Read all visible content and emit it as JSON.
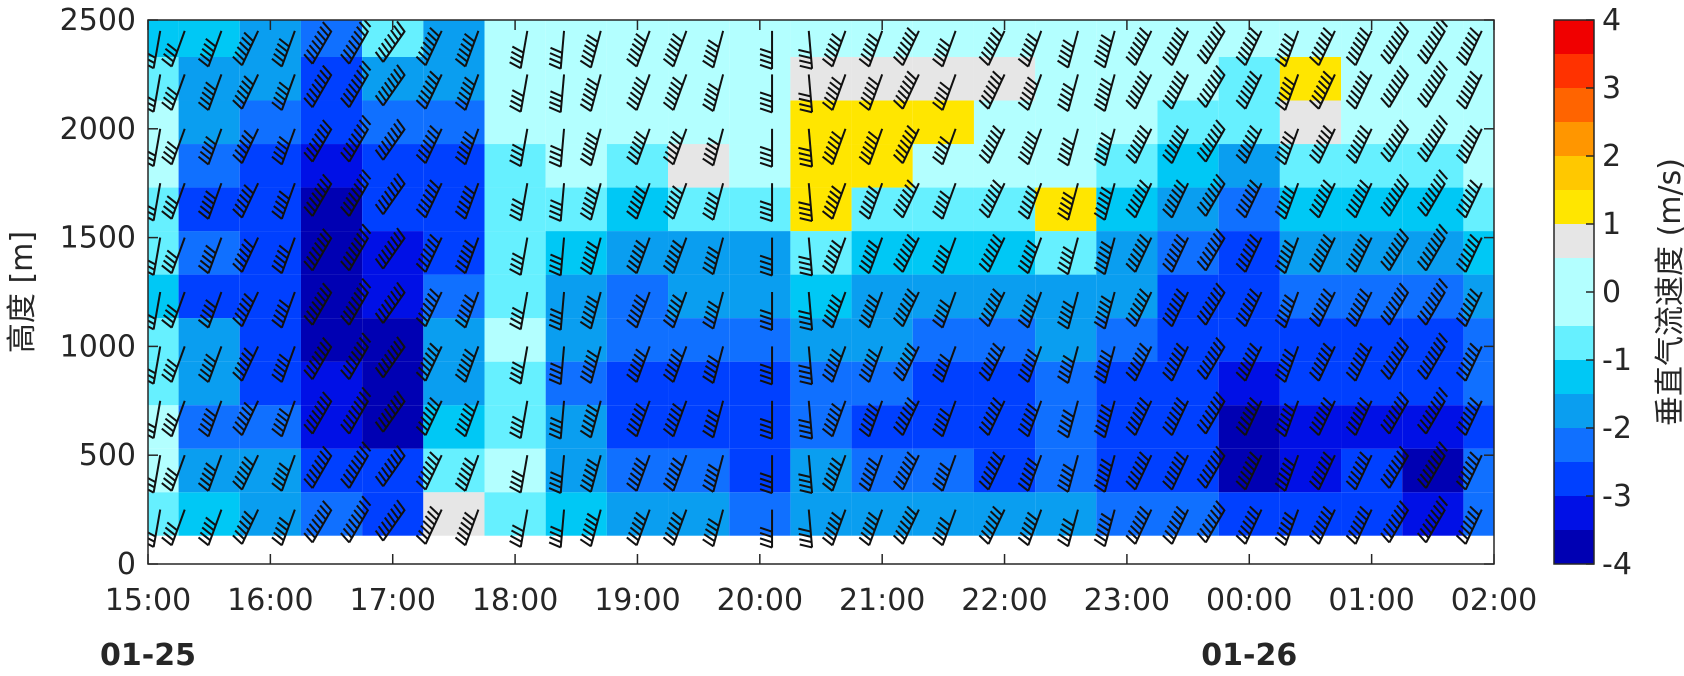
{
  "chart_data": {
    "type": "heatmap",
    "overlay": "wind-barbs",
    "x_tick_labels": [
      "15:00",
      "16:00",
      "17:00",
      "18:00",
      "19:00",
      "20:00",
      "21:00",
      "22:00",
      "23:00",
      "00:00",
      "01:00",
      "02:00"
    ],
    "x_hours": [
      15,
      16,
      17,
      18,
      19,
      20,
      21,
      22,
      23,
      24,
      25,
      26
    ],
    "date_labels": [
      {
        "text": "01-25",
        "hour": 15
      },
      {
        "text": "01-26",
        "hour": 24
      }
    ],
    "ylabel": "高度 [m]",
    "ylim": [
      0,
      2500
    ],
    "y_ticks": [
      0,
      500,
      1000,
      1500,
      2000,
      2500
    ],
    "y_tick_labels": [
      "0",
      "500",
      "1000",
      "1500",
      "2000",
      "2500"
    ],
    "data_bottom_height": 130,
    "colorbar": {
      "label": "垂直气流速度 (m/s)",
      "range": [
        -4,
        4
      ],
      "ticks": [
        4,
        3,
        2,
        1,
        0,
        -1,
        -2,
        -3,
        -4
      ],
      "tick_labels": [
        "4",
        "3",
        "2",
        "1",
        "0",
        "-1",
        "-2",
        "-3",
        "-4"
      ],
      "levels": [
        -4,
        -3.5,
        -3,
        -2.5,
        -2,
        -1.5,
        -1,
        -0.5,
        0.5,
        1,
        1.5,
        2,
        2.5,
        3,
        3.5,
        4
      ],
      "colors": [
        "#0000b3",
        "#0010e6",
        "#0040ff",
        "#1070ff",
        "#0a9ef0",
        "#00c8f5",
        "#66f0ff",
        "#b3ffff",
        "#e6e6e6",
        "#ffe600",
        "#ffc800",
        "#ff9600",
        "#ff6400",
        "#ff3200",
        "#f00000",
        "#c00000"
      ]
    },
    "series": [
      {
        "hour": 15.0,
        "values": [
          -0.8,
          -0.5,
          -0.3,
          -0.6,
          -1.0,
          -1.2,
          -1.0,
          -0.6,
          -0.5,
          -0.4,
          -0.6,
          -1.2
        ]
      },
      {
        "hour": 15.5,
        "values": [
          -1.5,
          -1.8,
          -2.2,
          -2.0,
          -1.8,
          -2.6,
          -2.2,
          -2.6,
          -2.4,
          -2.0,
          -1.8,
          -1.5
        ]
      },
      {
        "hour": 16.0,
        "values": [
          -1.8,
          -2.0,
          -2.2,
          -2.6,
          -2.8,
          -2.8,
          -3.0,
          -2.8,
          -2.6,
          -2.4,
          -2.0,
          -1.8
        ]
      },
      {
        "hour": 16.5,
        "values": [
          -2.4,
          -2.8,
          -3.2,
          -3.4,
          -3.6,
          -3.8,
          -3.8,
          -3.6,
          -3.4,
          -3.0,
          -2.6,
          -2.2
        ]
      },
      {
        "hour": 17.0,
        "values": [
          -2.6,
          -3.0,
          -3.6,
          -3.8,
          -3.6,
          -3.4,
          -3.2,
          -3.0,
          -2.8,
          -2.4,
          -1.6,
          -1.0
        ]
      },
      {
        "hour": 17.5,
        "values": [
          0.8,
          -0.6,
          -1.2,
          -1.6,
          -2.0,
          -2.4,
          -2.8,
          -2.8,
          -2.6,
          -2.4,
          -2.0,
          -1.6
        ]
      },
      {
        "hour": 18.0,
        "values": [
          -0.6,
          -0.5,
          -0.8,
          -0.6,
          -0.5,
          -0.8,
          -1.0,
          -0.8,
          -0.6,
          -0.4,
          -0.3,
          -0.3
        ]
      },
      {
        "hour": 18.5,
        "values": [
          -1.2,
          -1.6,
          -2.0,
          -2.2,
          -2.0,
          -1.8,
          -1.2,
          -0.8,
          -0.5,
          -0.3,
          -0.3,
          -0.3
        ]
      },
      {
        "hour": 19.0,
        "values": [
          -1.8,
          -2.2,
          -2.6,
          -2.6,
          -2.4,
          -2.2,
          -1.6,
          -1.2,
          -0.8,
          -0.4,
          -0.3,
          -0.2
        ]
      },
      {
        "hour": 19.5,
        "values": [
          -2.0,
          -2.4,
          -2.8,
          -2.8,
          -2.4,
          -2.0,
          -1.6,
          -1.0,
          0.8,
          -0.3,
          -0.2,
          -0.2
        ]
      },
      {
        "hour": 20.0,
        "values": [
          -2.2,
          -2.6,
          -2.8,
          -2.6,
          -2.4,
          -2.0,
          -1.6,
          -1.0,
          -0.5,
          -0.3,
          -0.2,
          -0.2
        ]
      },
      {
        "hour": 20.5,
        "values": [
          -1.6,
          -2.0,
          -2.4,
          -2.2,
          -1.8,
          -1.4,
          -1.0,
          1.0,
          1.2,
          1.0,
          0.8,
          -0.3
        ]
      },
      {
        "hour": 21.0,
        "values": [
          -2.0,
          -2.4,
          -2.6,
          -2.4,
          -2.0,
          -1.6,
          -1.2,
          -0.8,
          1.0,
          1.2,
          0.8,
          -0.3
        ]
      },
      {
        "hour": 21.5,
        "values": [
          -1.8,
          -2.2,
          -2.6,
          -2.6,
          -2.2,
          -1.8,
          -1.2,
          -0.8,
          -0.5,
          1.0,
          0.8,
          -0.3
        ]
      },
      {
        "hour": 22.0,
        "values": [
          -2.0,
          -2.6,
          -3.0,
          -2.8,
          -2.4,
          -2.0,
          -1.4,
          -0.8,
          -0.4,
          -0.3,
          0.8,
          -0.3
        ]
      },
      {
        "hour": 22.5,
        "values": [
          -1.8,
          -2.2,
          -2.4,
          -2.2,
          -2.0,
          -1.6,
          -1.0,
          1.0,
          -0.4,
          -0.3,
          -0.3,
          -0.2
        ]
      },
      {
        "hour": 23.0,
        "values": [
          -2.2,
          -2.6,
          -2.8,
          -2.6,
          -2.4,
          -2.0,
          -1.6,
          -1.2,
          -0.6,
          -0.4,
          -0.3,
          -0.2
        ]
      },
      {
        "hour": 23.5,
        "values": [
          -2.4,
          -2.8,
          -3.0,
          -3.0,
          -2.8,
          -2.6,
          -2.4,
          -1.8,
          -1.2,
          -0.6,
          -0.4,
          -0.3
        ]
      },
      {
        "hour": 24.0,
        "values": [
          -3.0,
          -3.6,
          -3.8,
          -3.4,
          -3.0,
          -2.8,
          -2.6,
          -2.2,
          -1.6,
          -1.0,
          -0.6,
          -0.4
        ]
      },
      {
        "hour": 24.5,
        "values": [
          -2.8,
          -3.2,
          -3.4,
          -3.0,
          -2.6,
          -2.2,
          -1.8,
          -1.4,
          -1.0,
          0.8,
          1.0,
          -0.4
        ]
      },
      {
        "hour": 25.0,
        "values": [
          -2.6,
          -3.0,
          -3.2,
          -3.0,
          -2.8,
          -2.4,
          -2.0,
          -1.4,
          -0.8,
          -0.5,
          -0.4,
          -0.3
        ]
      },
      {
        "hour": 25.5,
        "values": [
          -3.2,
          -3.6,
          -3.4,
          -3.0,
          -2.6,
          -2.4,
          -2.0,
          -1.4,
          -0.8,
          -0.4,
          -0.3,
          -0.3
        ]
      },
      {
        "hour": 26.0,
        "values": [
          -2.2,
          -2.4,
          -2.6,
          -2.4,
          -2.2,
          -1.8,
          -1.2,
          -0.8,
          -0.4,
          -0.3,
          -0.3,
          -0.2
        ]
      }
    ],
    "series_heights": [
      130,
      330,
      530,
      730,
      930,
      1130,
      1330,
      1530,
      1730,
      1930,
      2130,
      2330,
      2500
    ],
    "wind_barb_columns": [
      {
        "hour": 15.1,
        "dir": 190,
        "speed": 6
      },
      {
        "hour": 15.3,
        "dir": 200,
        "speed": 8
      },
      {
        "hour": 15.6,
        "dir": 200,
        "speed": 10
      },
      {
        "hour": 15.9,
        "dir": 205,
        "speed": 12
      },
      {
        "hour": 16.2,
        "dir": 200,
        "speed": 10
      },
      {
        "hour": 16.5,
        "dir": 210,
        "speed": 16
      },
      {
        "hour": 16.8,
        "dir": 210,
        "speed": 18
      },
      {
        "hour": 17.1,
        "dir": 215,
        "speed": 16
      },
      {
        "hour": 17.4,
        "dir": 205,
        "speed": 14
      },
      {
        "hour": 17.7,
        "dir": 200,
        "speed": 12
      },
      {
        "hour": 18.1,
        "dir": 190,
        "speed": 8
      },
      {
        "hour": 18.4,
        "dir": 185,
        "speed": 8
      },
      {
        "hour": 18.7,
        "dir": 195,
        "speed": 12
      },
      {
        "hour": 19.1,
        "dir": 200,
        "speed": 12
      },
      {
        "hour": 19.4,
        "dir": 200,
        "speed": 12
      },
      {
        "hour": 19.7,
        "dir": 195,
        "speed": 10
      },
      {
        "hour": 20.1,
        "dir": 180,
        "speed": 8
      },
      {
        "hour": 20.4,
        "dir": 175,
        "speed": 8
      },
      {
        "hour": 20.7,
        "dir": 200,
        "speed": 12
      },
      {
        "hour": 21.0,
        "dir": 200,
        "speed": 12
      },
      {
        "hour": 21.3,
        "dir": 205,
        "speed": 14
      },
      {
        "hour": 21.6,
        "dir": 200,
        "speed": 10
      },
      {
        "hour": 22.0,
        "dir": 205,
        "speed": 14
      },
      {
        "hour": 22.3,
        "dir": 200,
        "speed": 12
      },
      {
        "hour": 22.6,
        "dir": 195,
        "speed": 10
      },
      {
        "hour": 22.9,
        "dir": 195,
        "speed": 12
      },
      {
        "hour": 23.2,
        "dir": 205,
        "speed": 14
      },
      {
        "hour": 23.5,
        "dir": 205,
        "speed": 14
      },
      {
        "hour": 23.8,
        "dir": 210,
        "speed": 16
      },
      {
        "hour": 24.1,
        "dir": 205,
        "speed": 14
      },
      {
        "hour": 24.4,
        "dir": 200,
        "speed": 12
      },
      {
        "hour": 24.7,
        "dir": 205,
        "speed": 14
      },
      {
        "hour": 25.0,
        "dir": 205,
        "speed": 14
      },
      {
        "hour": 25.3,
        "dir": 210,
        "speed": 16
      },
      {
        "hour": 25.6,
        "dir": 210,
        "speed": 18
      },
      {
        "hour": 25.9,
        "dir": 205,
        "speed": 14
      }
    ],
    "barb_heights": [
      250,
      500,
      750,
      1000,
      1250,
      1500,
      1750,
      2000,
      2250,
      2450
    ]
  }
}
